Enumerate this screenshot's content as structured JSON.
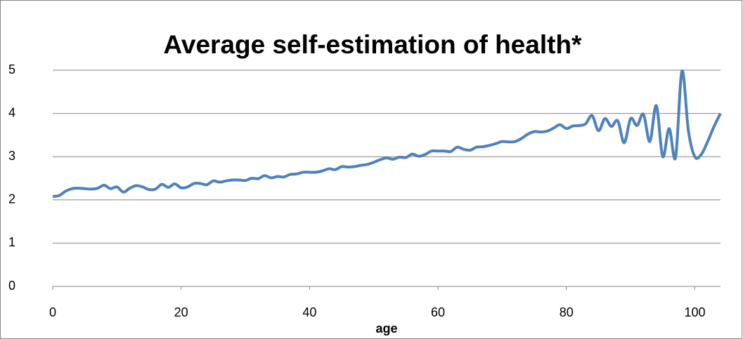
{
  "chart_data": {
    "type": "line",
    "title": "Average self-estimation of health*",
    "xlabel": "age",
    "x": [
      0,
      1,
      2,
      3,
      4,
      5,
      6,
      7,
      8,
      9,
      10,
      11,
      12,
      13,
      14,
      15,
      16,
      17,
      18,
      19,
      20,
      21,
      22,
      23,
      24,
      25,
      26,
      27,
      28,
      29,
      30,
      31,
      32,
      33,
      34,
      35,
      36,
      37,
      38,
      39,
      40,
      41,
      42,
      43,
      44,
      45,
      46,
      47,
      48,
      49,
      50,
      51,
      52,
      53,
      54,
      55,
      56,
      57,
      58,
      59,
      60,
      61,
      62,
      63,
      64,
      65,
      66,
      67,
      68,
      69,
      70,
      71,
      72,
      73,
      74,
      75,
      76,
      77,
      78,
      79,
      80,
      81,
      82,
      83,
      84,
      85,
      86,
      87,
      88,
      89,
      90,
      91,
      92,
      93,
      94,
      95,
      96,
      97,
      98,
      99,
      100,
      101,
      102,
      103,
      104
    ],
    "series": [
      {
        "color": "#4f81bd",
        "values": [
          2.08,
          2.1,
          2.2,
          2.26,
          2.27,
          2.26,
          2.25,
          2.27,
          2.34,
          2.26,
          2.3,
          2.18,
          2.27,
          2.33,
          2.3,
          2.24,
          2.25,
          2.36,
          2.29,
          2.37,
          2.28,
          2.3,
          2.38,
          2.38,
          2.35,
          2.44,
          2.41,
          2.44,
          2.46,
          2.46,
          2.45,
          2.5,
          2.49,
          2.56,
          2.51,
          2.54,
          2.53,
          2.59,
          2.6,
          2.64,
          2.64,
          2.64,
          2.67,
          2.72,
          2.7,
          2.77,
          2.76,
          2.77,
          2.8,
          2.82,
          2.87,
          2.93,
          2.97,
          2.94,
          2.99,
          2.98,
          3.06,
          3.01,
          3.05,
          3.13,
          3.13,
          3.13,
          3.12,
          3.22,
          3.17,
          3.15,
          3.22,
          3.23,
          3.26,
          3.3,
          3.35,
          3.34,
          3.35,
          3.42,
          3.52,
          3.58,
          3.57,
          3.59,
          3.66,
          3.74,
          3.65,
          3.71,
          3.72,
          3.76,
          3.95,
          3.6,
          3.88,
          3.7,
          3.83,
          3.32,
          3.88,
          3.72,
          3.98,
          3.35,
          4.18,
          3.0,
          3.65,
          2.98,
          4.98,
          3.6,
          3.0,
          3.05,
          3.35,
          3.7,
          4.0
        ]
      }
    ],
    "xlim": [
      0,
      104
    ],
    "xticks": [
      0,
      20,
      40,
      60,
      80,
      100
    ],
    "ylim": [
      0,
      5
    ],
    "yticks": [
      0,
      1,
      2,
      3,
      4,
      5
    ],
    "grid": true
  }
}
